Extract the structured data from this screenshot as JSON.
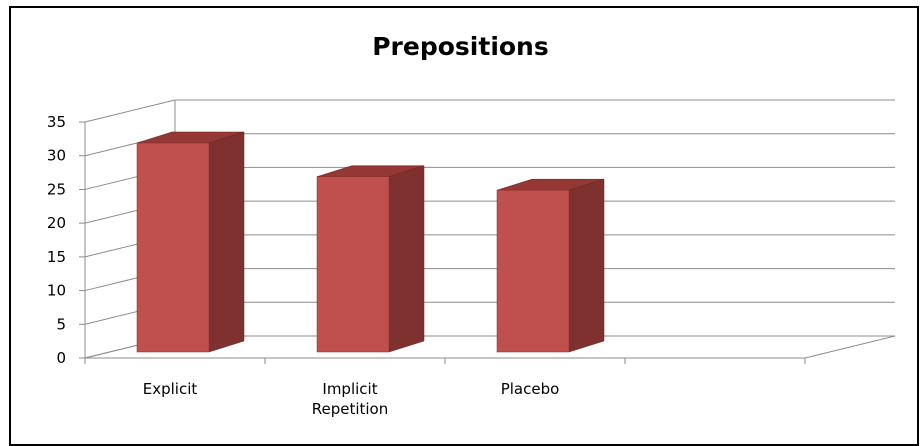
{
  "chart_data": {
    "type": "bar",
    "title": "Prepositions",
    "xlabel": "",
    "ylabel": "",
    "categories": [
      "Explicit",
      "Implicit Repetition",
      "Placebo",
      ""
    ],
    "category_lines": [
      [
        "Explicit"
      ],
      [
        "Implicit",
        "Repetition"
      ],
      [
        "Placebo"
      ],
      [
        ""
      ]
    ],
    "values": [
      31,
      26,
      24,
      null
    ],
    "ylim": [
      0,
      35
    ],
    "yticks": [
      0,
      5,
      10,
      15,
      20,
      25,
      30,
      35
    ],
    "three_d": true,
    "grid": true,
    "legend": "none",
    "colors": {
      "bar_front": "#C0504D",
      "bar_side": "#7F3130",
      "bar_top": "#953735",
      "grid": "#8C8C8C",
      "axis": "#8C8C8C"
    }
  }
}
